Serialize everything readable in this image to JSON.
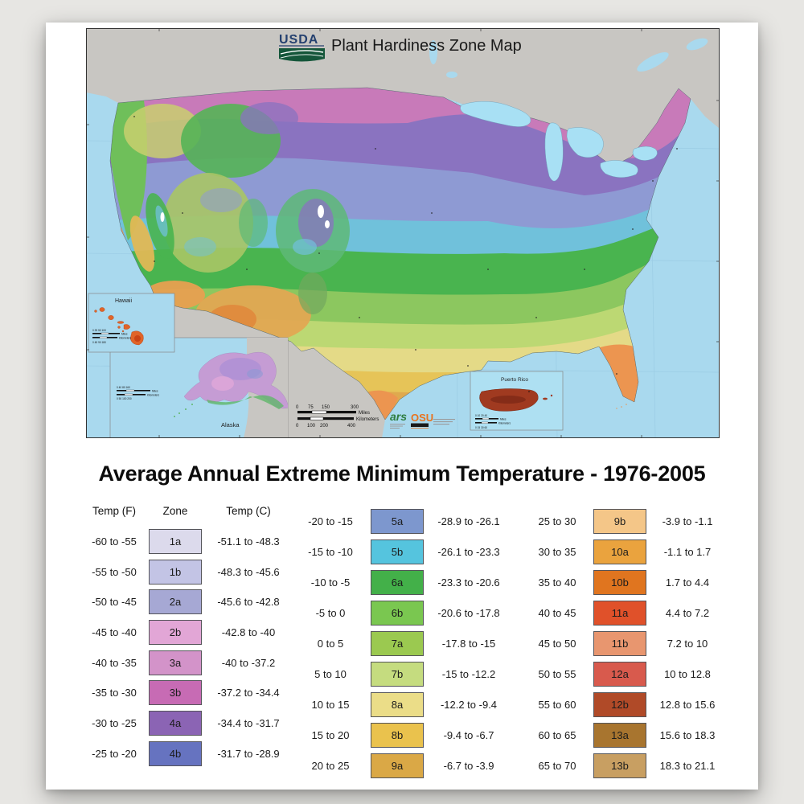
{
  "page": {
    "title": "Average Annual Extreme Minimum Temperature - 1976-2005"
  },
  "map": {
    "usda": "USDA",
    "title": "Plant Hardiness Zone Map",
    "hawaii_label": "Hawaii",
    "alaska_label": "Alaska",
    "puerto_rico_label": "Puerto Rico",
    "scalebar": {
      "miles": [
        "0",
        "75",
        "150",
        "300"
      ],
      "miles_unit": "Miles",
      "km": [
        "0",
        "100",
        "200",
        "400"
      ],
      "km_unit": "Kilometers"
    },
    "inset_scales": {
      "hawaii_top": "0 25 50    100",
      "hawaii_bottom": "0 45 90    180",
      "alaska_top": "0  40  80     160",
      "alaska_bottom": "0 50 100    200",
      "pr_top": "0 10 20   40",
      "pr_bottom": "0 15 30   60"
    },
    "logos": {
      "ars": "ars",
      "osu": "OSU"
    }
  },
  "legend": {
    "headers": {
      "temp_f": "Temp (F)",
      "zone": "Zone",
      "temp_c": "Temp (C)"
    },
    "groups": [
      [
        {
          "f": "-60 to -55",
          "z": "1a",
          "c": "-51.1 to -48.3",
          "color": "#dcdaec"
        },
        {
          "f": "-55 to -50",
          "z": "1b",
          "c": "-48.3 to -45.6",
          "color": "#c3c4e5"
        },
        {
          "f": "-50 to -45",
          "z": "2a",
          "c": "-45.6 to -42.8",
          "color": "#a6a8d4"
        },
        {
          "f": "-45 to -40",
          "z": "2b",
          "c": "-42.8 to -40",
          "color": "#e2a6d6"
        },
        {
          "f": "-40 to -35",
          "z": "3a",
          "c": "-40 to -37.2",
          "color": "#d393c9"
        },
        {
          "f": "-35 to -30",
          "z": "3b",
          "c": "-37.2 to -34.4",
          "color": "#c76bb4"
        },
        {
          "f": "-30 to -25",
          "z": "4a",
          "c": "-34.4 to -31.7",
          "color": "#8b64b4"
        },
        {
          "f": "-25 to -20",
          "z": "4b",
          "c": "-31.7 to -28.9",
          "color": "#6673c0"
        }
      ],
      [
        {
          "f": "-20 to -15",
          "z": "5a",
          "c": "-28.9 to -26.1",
          "color": "#7d97ce"
        },
        {
          "f": "-15 to -10",
          "z": "5b",
          "c": "-26.1 to -23.3",
          "color": "#55c4de"
        },
        {
          "f": "-10 to -5",
          "z": "6a",
          "c": "-23.3 to -20.6",
          "color": "#43b049"
        },
        {
          "f": "-5 to 0",
          "z": "6b",
          "c": "-20.6 to -17.8",
          "color": "#7ac750"
        },
        {
          "f": "0 to 5",
          "z": "7a",
          "c": "-17.8 to -15",
          "color": "#9bc950"
        },
        {
          "f": "5 to 10",
          "z": "7b",
          "c": "-15 to -12.2",
          "color": "#c5dc7f"
        },
        {
          "f": "10 to 15",
          "z": "8a",
          "c": "-12.2 to -9.4",
          "color": "#ebdd88"
        },
        {
          "f": "15 to 20",
          "z": "8b",
          "c": "-9.4 to -6.7",
          "color": "#eac24d"
        },
        {
          "f": "20 to 25",
          "z": "9a",
          "c": "-6.7 to -3.9",
          "color": "#daa846"
        }
      ],
      [
        {
          "f": "25 to 30",
          "z": "9b",
          "c": "-3.9 to -1.1",
          "color": "#f4c688"
        },
        {
          "f": "30 to 35",
          "z": "10a",
          "c": "-1.1 to 1.7",
          "color": "#eaa33e"
        },
        {
          "f": "35 to 40",
          "z": "10b",
          "c": "1.7 to 4.4",
          "color": "#e0751f"
        },
        {
          "f": "40 to 45",
          "z": "11a",
          "c": "4.4 to 7.2",
          "color": "#e0512a"
        },
        {
          "f": "45 to 50",
          "z": "11b",
          "c": "7.2 to 10",
          "color": "#e8966f"
        },
        {
          "f": "50 to 55",
          "z": "12a",
          "c": "10 to 12.8",
          "color": "#d85a4d"
        },
        {
          "f": "55 to 60",
          "z": "12b",
          "c": "12.8 to 15.6",
          "color": "#b04a28"
        },
        {
          "f": "60 to 65",
          "z": "13a",
          "c": "15.6 to 18.3",
          "color": "#a8752f"
        },
        {
          "f": "65 to 70",
          "z": "13b",
          "c": "18.3 to 21.1",
          "color": "#c89f62"
        }
      ]
    ]
  }
}
